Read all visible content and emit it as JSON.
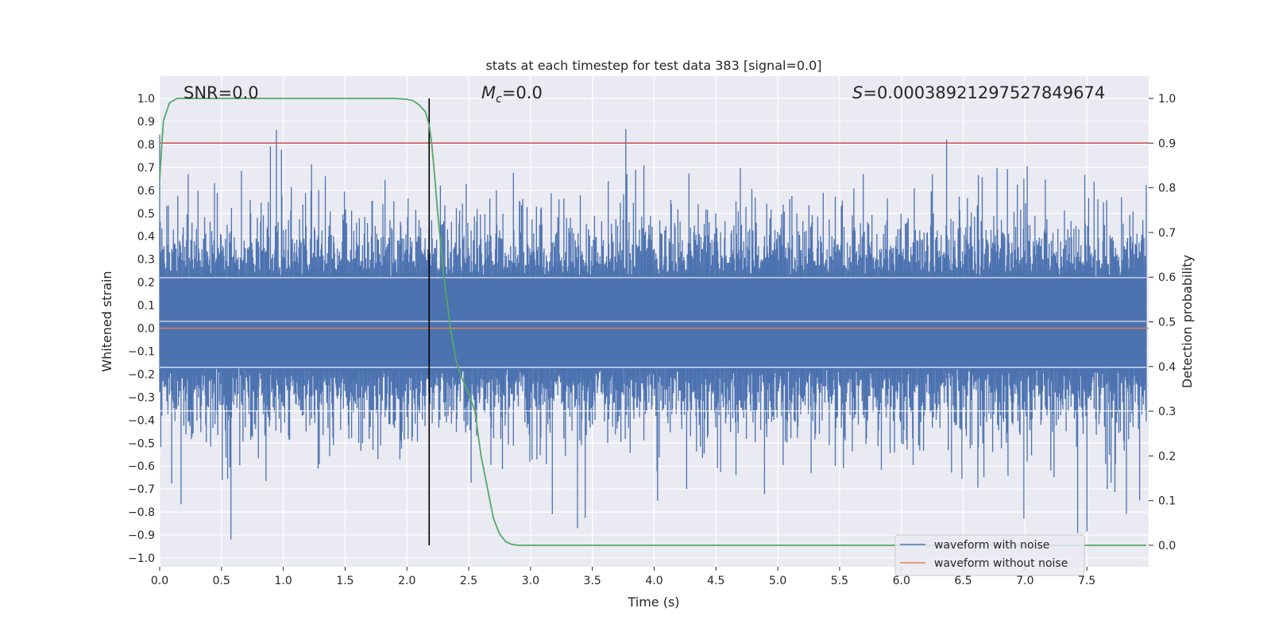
{
  "chart_data": {
    "type": "line",
    "title": "stats at each timestep for test data 383 [signal=0.0]",
    "xlabel": "Time (s)",
    "ylabel_left": "Whitened strain",
    "ylabel_right": "Detection probability",
    "xlim": [
      0.0,
      8.0
    ],
    "ylim_left": [
      -1.06,
      1.1
    ],
    "ylim_right": [
      0.0,
      1.0
    ],
    "x_ticks": [
      "0.0",
      "0.5",
      "1.0",
      "1.5",
      "2.0",
      "2.5",
      "3.0",
      "3.5",
      "4.0",
      "4.5",
      "5.0",
      "5.5",
      "6.0",
      "6.5",
      "7.0",
      "7.5"
    ],
    "y_ticks_left": [
      "1.0",
      "0.9",
      "0.8",
      "0.7",
      "0.6",
      "0.5",
      "0.4",
      "0.3",
      "0.2",
      "0.1",
      "0.0",
      "−0.1",
      "−0.2",
      "−0.3",
      "−0.4",
      "−0.5",
      "−0.6",
      "−0.7",
      "−0.8",
      "−0.9",
      "−1.0"
    ],
    "y_ticks_right": [
      "1.0",
      "0.9",
      "0.8",
      "0.7",
      "0.6",
      "0.5",
      "0.4",
      "0.3",
      "0.2",
      "0.1",
      "0.0"
    ],
    "grid": true,
    "legend_position": "bottom-right",
    "annotations": {
      "snr": "SNR=0.0",
      "mc_symbol": "M",
      "mc_subscript": "c",
      "mc_value": "=0.0",
      "s_symbol": "S",
      "s_value": "=0.00038921297527849674"
    },
    "series": [
      {
        "name": "waveform with noise",
        "color": "#4c72b0",
        "axis": "left",
        "description_values": {
          "typical_upper": 0.4,
          "typical_lower": -0.5,
          "max": 1.0,
          "min": -0.91
        }
      },
      {
        "name": "waveform without noise",
        "color": "#dd8452",
        "axis": "left",
        "values_const": 0.0
      },
      {
        "name": "detection probability",
        "color": "#55a868",
        "axis": "right",
        "x": [
          0.0,
          0.03,
          0.08,
          0.14,
          0.3,
          1.0,
          1.5,
          1.9,
          2.0,
          2.05,
          2.1,
          2.15,
          2.18,
          2.2,
          2.22,
          2.25,
          2.3,
          2.35,
          2.4,
          2.45,
          2.5,
          2.55,
          2.6,
          2.65,
          2.7,
          2.75,
          2.8,
          2.85,
          2.9,
          3.0,
          7.98
        ],
        "y": [
          0.82,
          0.95,
          0.99,
          1.0,
          1.0,
          1.0,
          1.0,
          1.0,
          0.998,
          0.995,
          0.985,
          0.97,
          0.94,
          0.9,
          0.84,
          0.74,
          0.6,
          0.49,
          0.41,
          0.37,
          0.34,
          0.3,
          0.2,
          0.13,
          0.06,
          0.025,
          0.008,
          0.002,
          0.0,
          0.0,
          0.0
        ]
      }
    ],
    "threshold_line": {
      "value_right": 0.9,
      "color": "#c44e52"
    },
    "vertical_line": {
      "x": 2.18,
      "color": "#000000"
    }
  },
  "legend": {
    "items": [
      {
        "label": "waveform with noise",
        "color": "#4c72b0"
      },
      {
        "label": "waveform without noise",
        "color": "#dd8452"
      }
    ]
  }
}
